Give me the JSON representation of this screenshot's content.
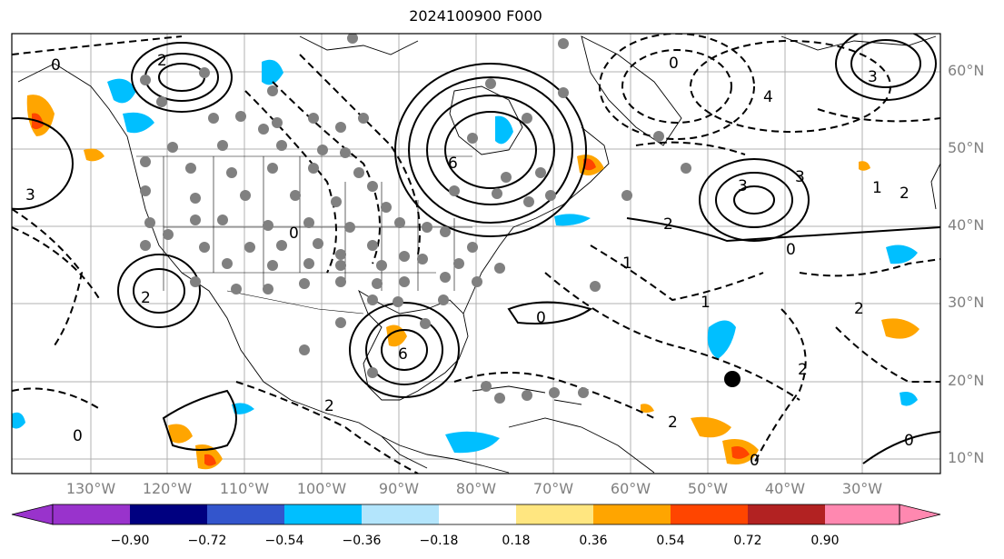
{
  "title": "2024100900 F000",
  "lat_labels": [
    "60°N",
    "50°N",
    "40°N",
    "30°N",
    "20°N",
    "10°N"
  ],
  "lon_labels": [
    "130°W",
    "120°W",
    "110°W",
    "100°W",
    "90°W",
    "80°W",
    "70°W",
    "60°W",
    "50°W",
    "40°W",
    "30°W"
  ],
  "colorbar": {
    "ticks": [
      "−0.90",
      "−0.72",
      "−0.54",
      "−0.36",
      "−0.18",
      "0.18",
      "0.36",
      "0.54",
      "0.72",
      "0.90"
    ],
    "colors": [
      "#9933cc",
      "#000080",
      "#3355cc",
      "#00bfff",
      "#b3e5fc",
      "#ffffff",
      "#ffe680",
      "#ffa500",
      "#ff4500",
      "#b22222",
      "#ff88b0"
    ]
  },
  "contour_labels": [
    "0",
    "2",
    "3",
    "6",
    "0",
    "0",
    "4",
    "3",
    "2",
    "6",
    "3",
    "0",
    "2",
    "1",
    "2",
    "0",
    "2",
    "0",
    "0",
    "2",
    "3",
    "1",
    "2",
    "0",
    "2",
    "1"
  ],
  "fill_colors": {
    "cyan": "#00bfff",
    "orange": "#ffa500",
    "red": "#ff4500"
  }
}
